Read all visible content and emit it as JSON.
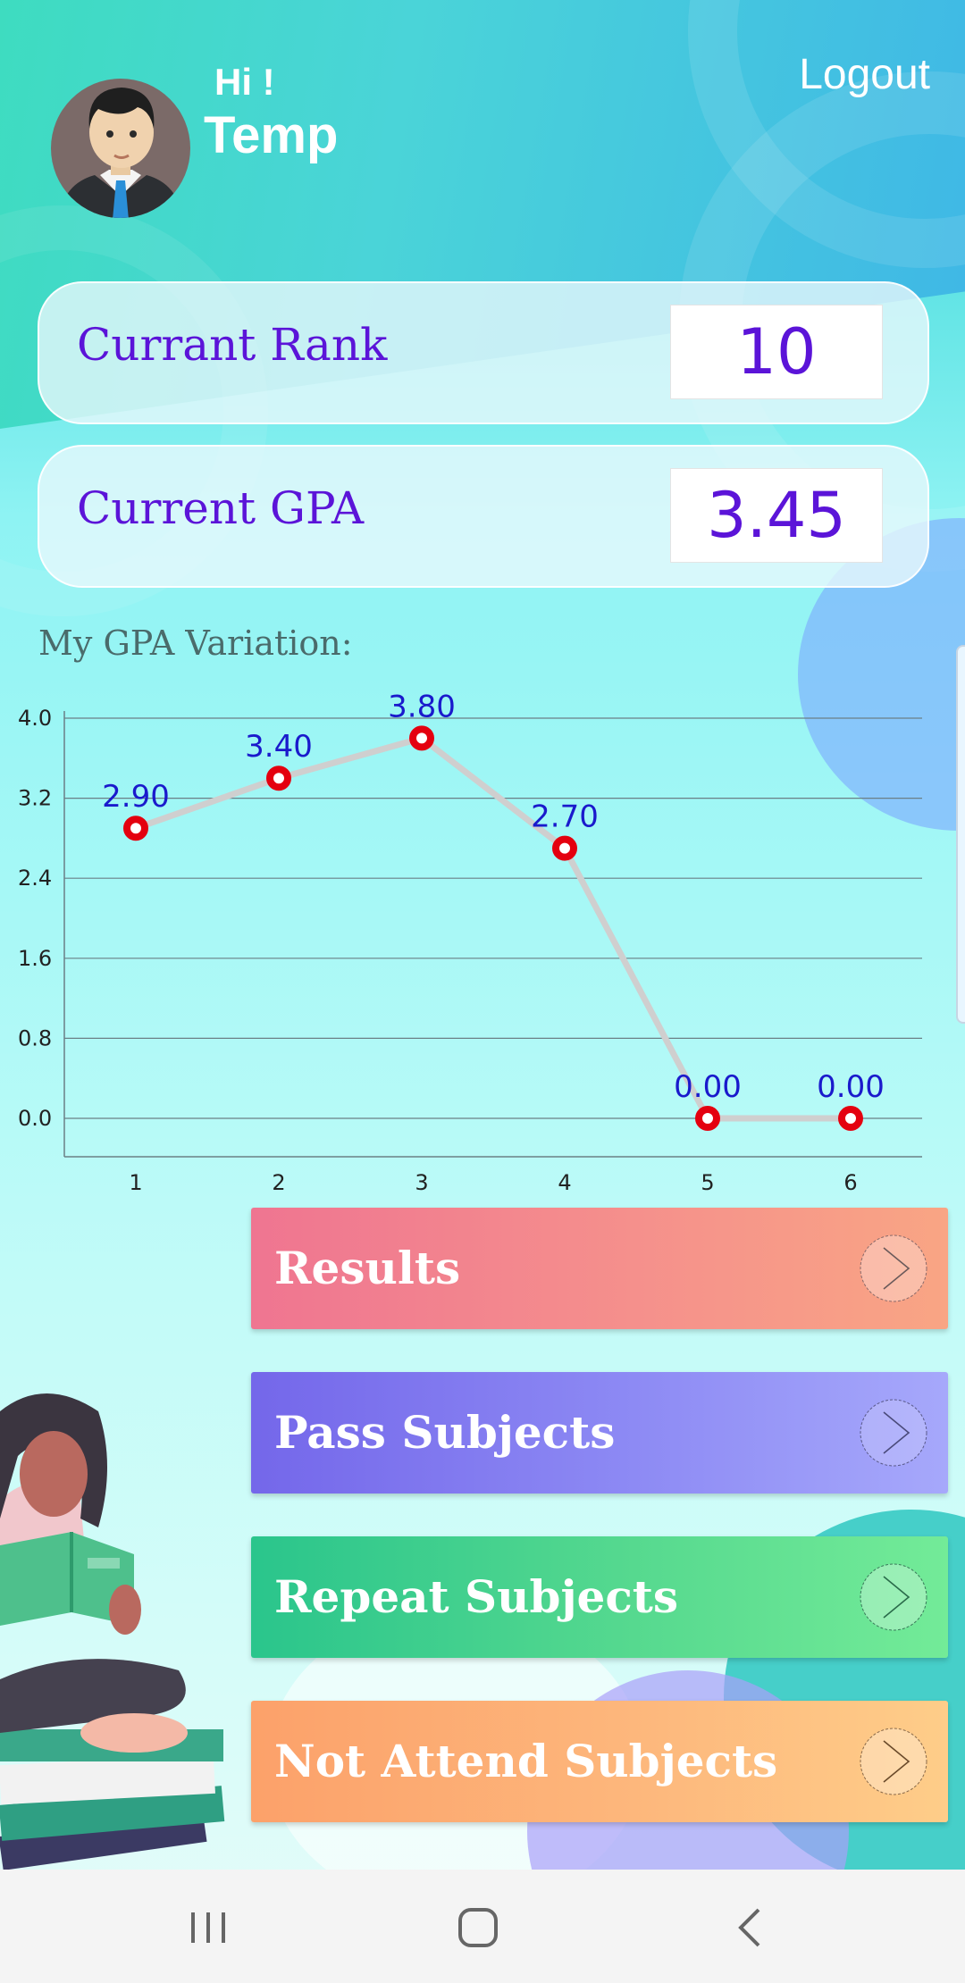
{
  "header": {
    "greeting": "Hi !",
    "username": "Temp",
    "logout_label": "Logout",
    "avatar_icon": "businessman-avatar-icon"
  },
  "stats": {
    "rank": {
      "label": "Currant Rank",
      "value": "10"
    },
    "gpa": {
      "label": "Current GPA",
      "value": "3.45"
    }
  },
  "chart_section": {
    "title": "My GPA Variation:"
  },
  "chart_data": {
    "type": "line",
    "x": [
      1,
      2,
      3,
      4,
      5,
      6
    ],
    "values": [
      2.9,
      3.4,
      3.8,
      2.7,
      0.0,
      0.0
    ],
    "data_labels": [
      "2.90",
      "3.40",
      "3.80",
      "2.70",
      "0.00",
      "0.00"
    ],
    "y_ticks": [
      "0.0",
      "0.8",
      "1.6",
      "2.4",
      "3.2",
      "4.0"
    ],
    "x_ticks": [
      "1",
      "2",
      "3",
      "4",
      "5",
      "6"
    ],
    "ylim": [
      0,
      4.0
    ],
    "grid": true,
    "legend": "none"
  },
  "actions": [
    {
      "label": "Results",
      "icon": "chevron-right-icon"
    },
    {
      "label": "Pass Subjects",
      "icon": "chevron-right-icon"
    },
    {
      "label": "Repeat Subjects",
      "icon": "chevron-right-icon"
    },
    {
      "label": "Not Attend Subjects",
      "icon": "chevron-right-icon"
    }
  ],
  "navbar": {
    "recent_icon": "recent-apps-icon",
    "home_icon": "home-icon",
    "back_icon": "back-icon"
  },
  "colors": {
    "accent_text": "#5b14d8",
    "chart_line": "#cfcfcf",
    "chart_point": "#e4000f",
    "chart_label": "#1a1acc",
    "results": "#f07f8f",
    "pass_subjects": "#8580f0",
    "repeat_subjects": "#3fd08d",
    "not_attend_subjects": "#fdb37b"
  }
}
